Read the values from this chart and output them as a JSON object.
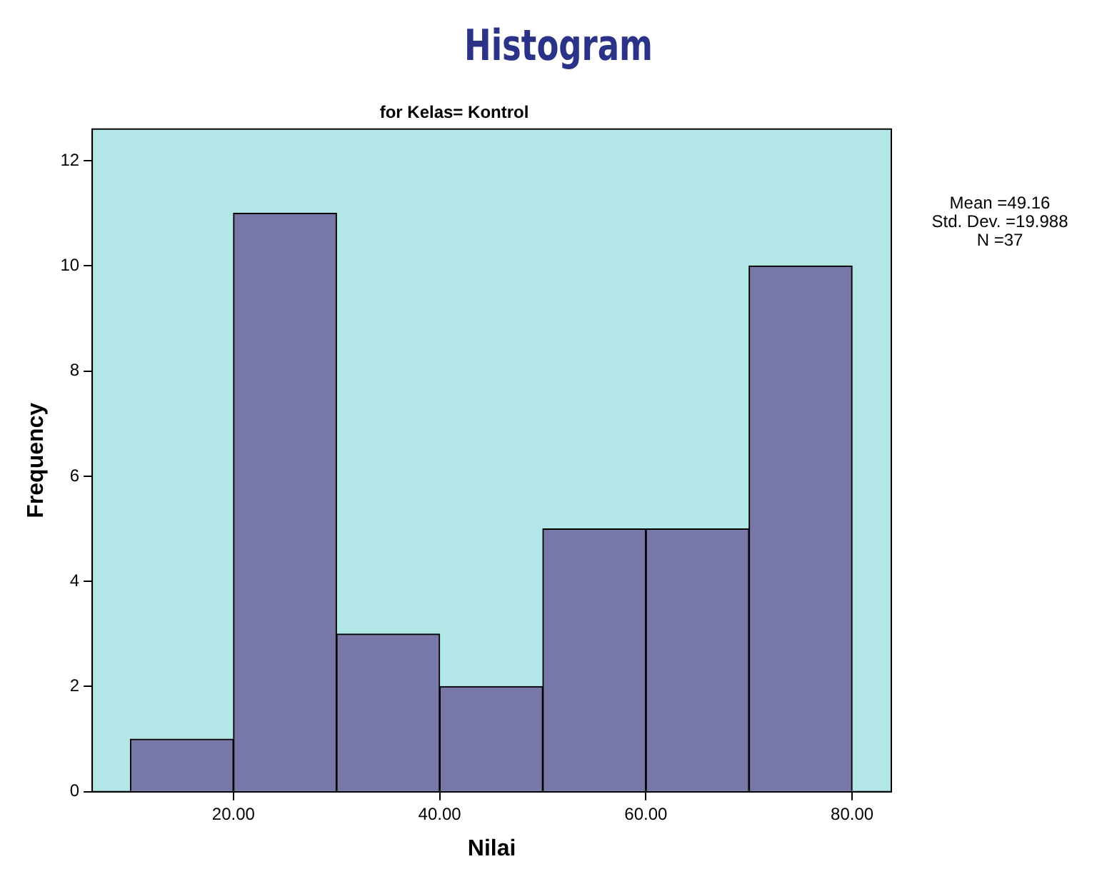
{
  "chart_data": {
    "type": "histogram",
    "title": "Histogram",
    "subtitle": "for Kelas= Kontrol",
    "xlabel": "Nilai",
    "ylabel": "Frequency",
    "bins": [
      10,
      20,
      30,
      40,
      50,
      60,
      70,
      80
    ],
    "values": [
      1,
      11,
      3,
      2,
      5,
      5,
      10
    ],
    "color": "#7878a8",
    "xlim": [
      6.3,
      83.8
    ],
    "xticks": [
      {
        "value": 20,
        "label": "20.00"
      },
      {
        "value": 40,
        "label": "40.00"
      },
      {
        "value": 60,
        "label": "60.00"
      },
      {
        "value": 80,
        "label": "80.00"
      }
    ],
    "ylim": [
      0,
      12.6
    ],
    "yticks": [
      0,
      2,
      4,
      6,
      8,
      10,
      12
    ],
    "grid": false,
    "legend": false,
    "annotations": [
      "Mean =49.16",
      "Std. Dev. =19.988",
      "N =37"
    ]
  }
}
